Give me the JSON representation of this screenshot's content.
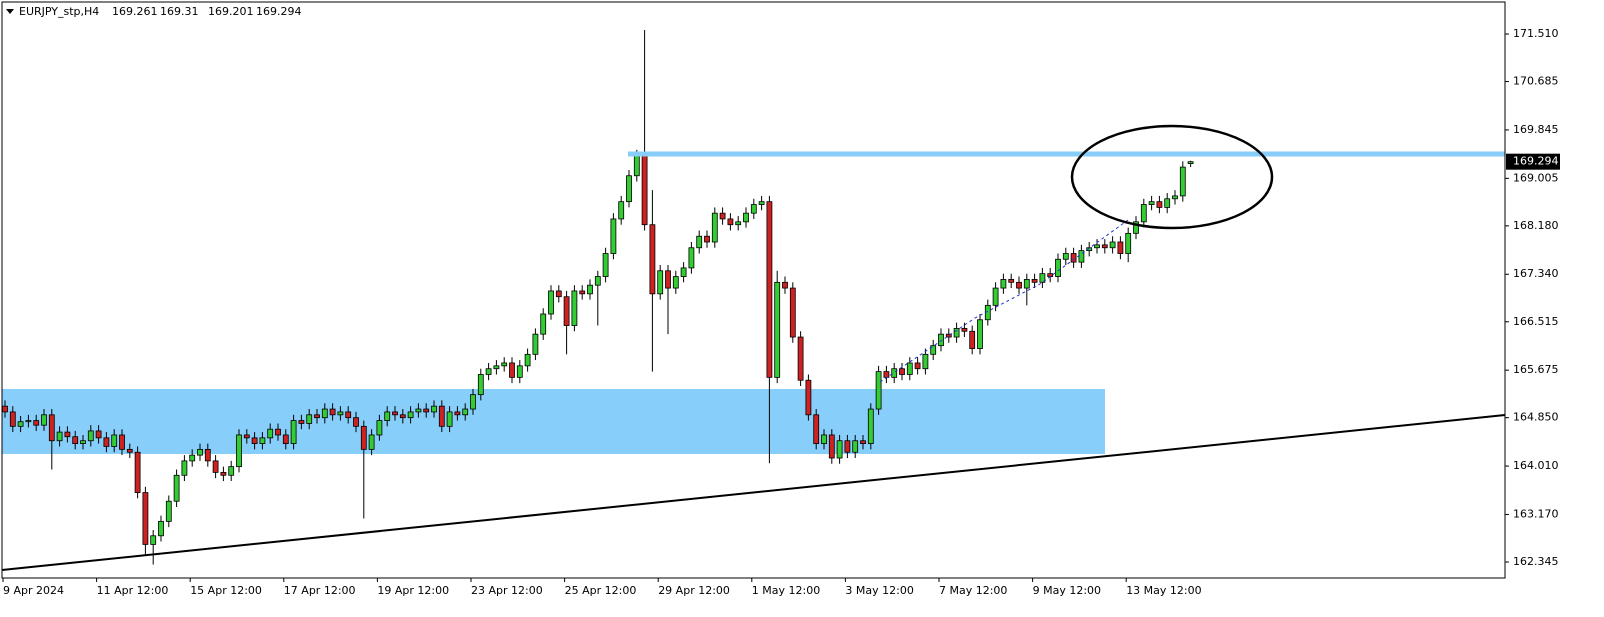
{
  "chart_data": {
    "type": "candlestick",
    "symbol": "EURJPY_stp,H4",
    "up_color": "#33cc33",
    "down_color": "#cc2222",
    "ylim": [
      162.067,
      172.066
    ],
    "yticks": [
      {
        "value": 171.51,
        "label": "171.510"
      },
      170.685,
      169.845,
      169.005,
      {
        "value": 168.18,
        "label": "168.180"
      },
      {
        "value": 167.34,
        "label": "167.340"
      },
      166.515,
      165.675,
      {
        "value": 164.85,
        "label": "164.850"
      },
      {
        "value": 164.01,
        "label": "164.010"
      },
      {
        "value": 163.17,
        "label": "163.170"
      },
      162.345
    ],
    "xticks": [
      {
        "value": 0,
        "label": "9 Apr 2024"
      },
      {
        "value": 12,
        "label": "11 Apr 12:00"
      },
      {
        "value": 24,
        "label": "15 Apr 12:00"
      },
      {
        "value": 36,
        "label": "17 Apr 12:00"
      },
      {
        "value": 48,
        "label": "19 Apr 12:00"
      },
      {
        "value": 60,
        "label": "23 Apr 12:00"
      },
      {
        "value": 72,
        "label": "25 Apr 12:00"
      },
      {
        "value": 84,
        "label": "29 Apr 12:00"
      },
      {
        "value": 96,
        "label": "1 May 12:00"
      },
      {
        "value": 108,
        "label": "3 May 12:00"
      },
      {
        "value": 120,
        "label": "7 May 12:00"
      },
      {
        "value": 132,
        "label": "9 May 12:00"
      },
      {
        "value": 144,
        "label": "13 May 12:00"
      }
    ],
    "open": [
      165.05,
      164.95,
      164.7,
      164.78,
      164.8,
      164.72,
      164.9,
      164.45,
      164.6,
      164.52,
      164.4,
      164.45,
      164.62,
      164.5,
      164.35,
      164.55,
      164.3,
      164.25,
      163.55,
      162.65,
      162.8,
      163.05,
      163.4,
      163.85,
      164.1,
      164.2,
      164.3,
      164.1,
      163.9,
      163.85,
      164.0,
      164.55,
      164.5,
      164.4,
      164.5,
      164.65,
      164.55,
      164.4,
      164.8,
      164.75,
      164.9,
      164.85,
      165.0,
      164.9,
      164.95,
      164.85,
      164.7,
      164.3,
      164.55,
      164.8,
      164.95,
      164.9,
      164.85,
      164.95,
      165.0,
      164.95,
      165.05,
      164.7,
      164.95,
      164.9,
      165.0,
      165.25,
      165.6,
      165.7,
      165.75,
      165.8,
      165.55,
      165.75,
      165.95,
      166.3,
      166.65,
      167.05,
      166.95,
      166.45,
      167.05,
      167.0,
      167.15,
      167.3,
      167.7,
      168.3,
      168.6,
      169.05,
      169.45,
      168.2,
      167.0,
      167.4,
      167.1,
      167.3,
      167.45,
      167.8,
      168.0,
      167.9,
      168.4,
      168.3,
      168.2,
      168.25,
      168.4,
      168.55,
      168.6,
      165.55,
      167.2,
      167.1,
      166.25,
      165.5,
      164.9,
      164.4,
      164.55,
      164.15,
      164.45,
      164.25,
      164.45,
      164.4,
      165.0,
      165.65,
      165.55,
      165.7,
      165.6,
      165.8,
      165.7,
      165.95,
      166.1,
      166.3,
      166.25,
      166.4,
      166.35,
      166.05,
      166.55,
      166.8,
      167.1,
      167.25,
      167.2,
      167.1,
      167.25,
      167.2,
      167.35,
      167.3,
      167.6,
      167.7,
      167.55,
      167.75,
      167.8,
      167.85,
      167.8,
      167.9,
      167.7,
      168.05,
      168.25,
      168.55,
      168.6,
      168.5,
      168.65,
      168.7,
      169.261
    ],
    "high": [
      165.15,
      165.05,
      164.88,
      164.9,
      164.9,
      165.0,
      165.0,
      164.7,
      164.7,
      164.62,
      164.55,
      164.72,
      164.72,
      164.6,
      164.65,
      164.65,
      164.4,
      164.35,
      163.65,
      162.9,
      163.15,
      163.5,
      163.95,
      164.2,
      164.3,
      164.4,
      164.4,
      164.2,
      164.0,
      164.1,
      164.65,
      164.65,
      164.6,
      164.6,
      164.75,
      164.75,
      164.65,
      164.9,
      164.9,
      165.0,
      165.0,
      165.1,
      165.1,
      165.05,
      165.05,
      164.95,
      164.8,
      164.65,
      164.9,
      165.05,
      165.05,
      165.0,
      165.05,
      165.1,
      165.1,
      165.15,
      165.15,
      165.05,
      165.05,
      165.1,
      165.35,
      165.7,
      165.8,
      165.85,
      165.9,
      165.9,
      165.85,
      166.05,
      166.4,
      166.75,
      167.15,
      167.15,
      167.05,
      167.15,
      167.15,
      167.25,
      167.4,
      167.8,
      168.4,
      168.7,
      169.15,
      169.5,
      171.58,
      168.8,
      167.5,
      167.5,
      167.4,
      167.55,
      167.9,
      168.1,
      168.1,
      168.5,
      168.5,
      168.4,
      168.35,
      168.5,
      168.65,
      168.7,
      168.7,
      167.4,
      167.3,
      167.2,
      166.35,
      165.6,
      165.0,
      164.65,
      164.65,
      164.55,
      164.55,
      164.55,
      164.55,
      165.1,
      165.75,
      165.75,
      165.8,
      165.8,
      165.9,
      165.9,
      166.05,
      166.2,
      166.4,
      166.4,
      166.5,
      166.5,
      166.45,
      166.65,
      166.9,
      167.2,
      167.35,
      167.35,
      167.3,
      167.35,
      167.35,
      167.45,
      167.45,
      167.7,
      167.8,
      167.8,
      167.85,
      167.9,
      167.95,
      167.95,
      168.0,
      168.0,
      168.15,
      168.35,
      168.65,
      168.7,
      168.7,
      168.75,
      168.8,
      169.3,
      169.31
    ],
    "low": [
      164.85,
      164.6,
      164.6,
      164.68,
      164.62,
      164.62,
      163.95,
      164.35,
      164.42,
      164.3,
      164.3,
      164.35,
      164.4,
      164.25,
      164.25,
      164.2,
      164.15,
      163.45,
      162.45,
      162.3,
      162.7,
      162.95,
      163.3,
      163.75,
      164.0,
      164.1,
      164.0,
      163.8,
      163.75,
      163.75,
      163.9,
      164.4,
      164.3,
      164.3,
      164.4,
      164.45,
      164.3,
      164.3,
      164.65,
      164.65,
      164.75,
      164.75,
      164.8,
      164.8,
      164.75,
      164.6,
      163.1,
      164.2,
      164.45,
      164.7,
      164.8,
      164.75,
      164.75,
      164.85,
      164.85,
      164.85,
      164.6,
      164.6,
      164.8,
      164.8,
      164.9,
      165.15,
      165.5,
      165.6,
      165.65,
      165.45,
      165.45,
      165.65,
      165.85,
      166.2,
      166.55,
      166.85,
      165.95,
      166.35,
      166.9,
      166.9,
      166.45,
      167.2,
      167.6,
      168.2,
      168.5,
      168.95,
      168.1,
      165.65,
      166.9,
      166.3,
      167.0,
      167.2,
      167.35,
      167.7,
      167.8,
      167.8,
      168.2,
      168.1,
      168.1,
      168.15,
      168.3,
      168.45,
      164.06,
      165.45,
      167.0,
      166.15,
      165.4,
      164.8,
      164.3,
      164.3,
      164.05,
      164.05,
      164.15,
      164.15,
      164.3,
      164.3,
      164.9,
      165.45,
      165.45,
      165.5,
      165.5,
      165.6,
      165.6,
      165.85,
      166.0,
      166.15,
      166.15,
      166.25,
      165.95,
      165.95,
      166.45,
      166.7,
      167.0,
      167.1,
      167.0,
      166.8,
      167.1,
      167.1,
      167.2,
      167.2,
      167.5,
      167.45,
      167.45,
      167.65,
      167.7,
      167.7,
      167.7,
      167.6,
      167.55,
      167.95,
      168.15,
      168.45,
      168.4,
      168.4,
      168.55,
      168.6,
      169.201
    ],
    "close": [
      164.95,
      164.7,
      164.78,
      164.8,
      164.72,
      164.9,
      164.45,
      164.6,
      164.52,
      164.4,
      164.45,
      164.62,
      164.5,
      164.35,
      164.55,
      164.3,
      164.25,
      163.55,
      162.65,
      162.8,
      163.05,
      163.4,
      163.85,
      164.1,
      164.2,
      164.3,
      164.1,
      163.9,
      163.85,
      164.0,
      164.55,
      164.5,
      164.4,
      164.5,
      164.65,
      164.55,
      164.4,
      164.8,
      164.75,
      164.9,
      164.85,
      165.0,
      164.9,
      164.95,
      164.85,
      164.7,
      164.3,
      164.55,
      164.8,
      164.95,
      164.9,
      164.85,
      164.95,
      165.0,
      164.95,
      165.05,
      164.7,
      164.95,
      164.9,
      165.0,
      165.25,
      165.6,
      165.7,
      165.75,
      165.8,
      165.55,
      165.75,
      165.95,
      166.3,
      166.65,
      167.05,
      166.95,
      166.45,
      167.05,
      167.0,
      167.15,
      167.3,
      167.7,
      168.3,
      168.6,
      169.05,
      169.45,
      168.2,
      167.0,
      167.4,
      167.1,
      167.3,
      167.45,
      167.8,
      168.0,
      167.9,
      168.4,
      168.3,
      168.2,
      168.25,
      168.4,
      168.55,
      168.6,
      165.55,
      167.2,
      167.1,
      166.25,
      165.5,
      164.9,
      164.4,
      164.55,
      164.15,
      164.45,
      164.25,
      164.45,
      164.4,
      165.0,
      165.65,
      165.55,
      165.7,
      165.6,
      165.8,
      165.7,
      165.95,
      166.1,
      166.3,
      166.25,
      166.4,
      166.35,
      166.05,
      166.55,
      166.8,
      167.1,
      167.25,
      167.2,
      167.1,
      167.25,
      167.2,
      167.35,
      167.3,
      167.6,
      167.7,
      167.55,
      167.75,
      167.8,
      167.85,
      167.8,
      167.9,
      167.7,
      168.05,
      168.25,
      168.55,
      168.6,
      168.5,
      168.65,
      168.7,
      169.2,
      169.294
    ]
  }
}
